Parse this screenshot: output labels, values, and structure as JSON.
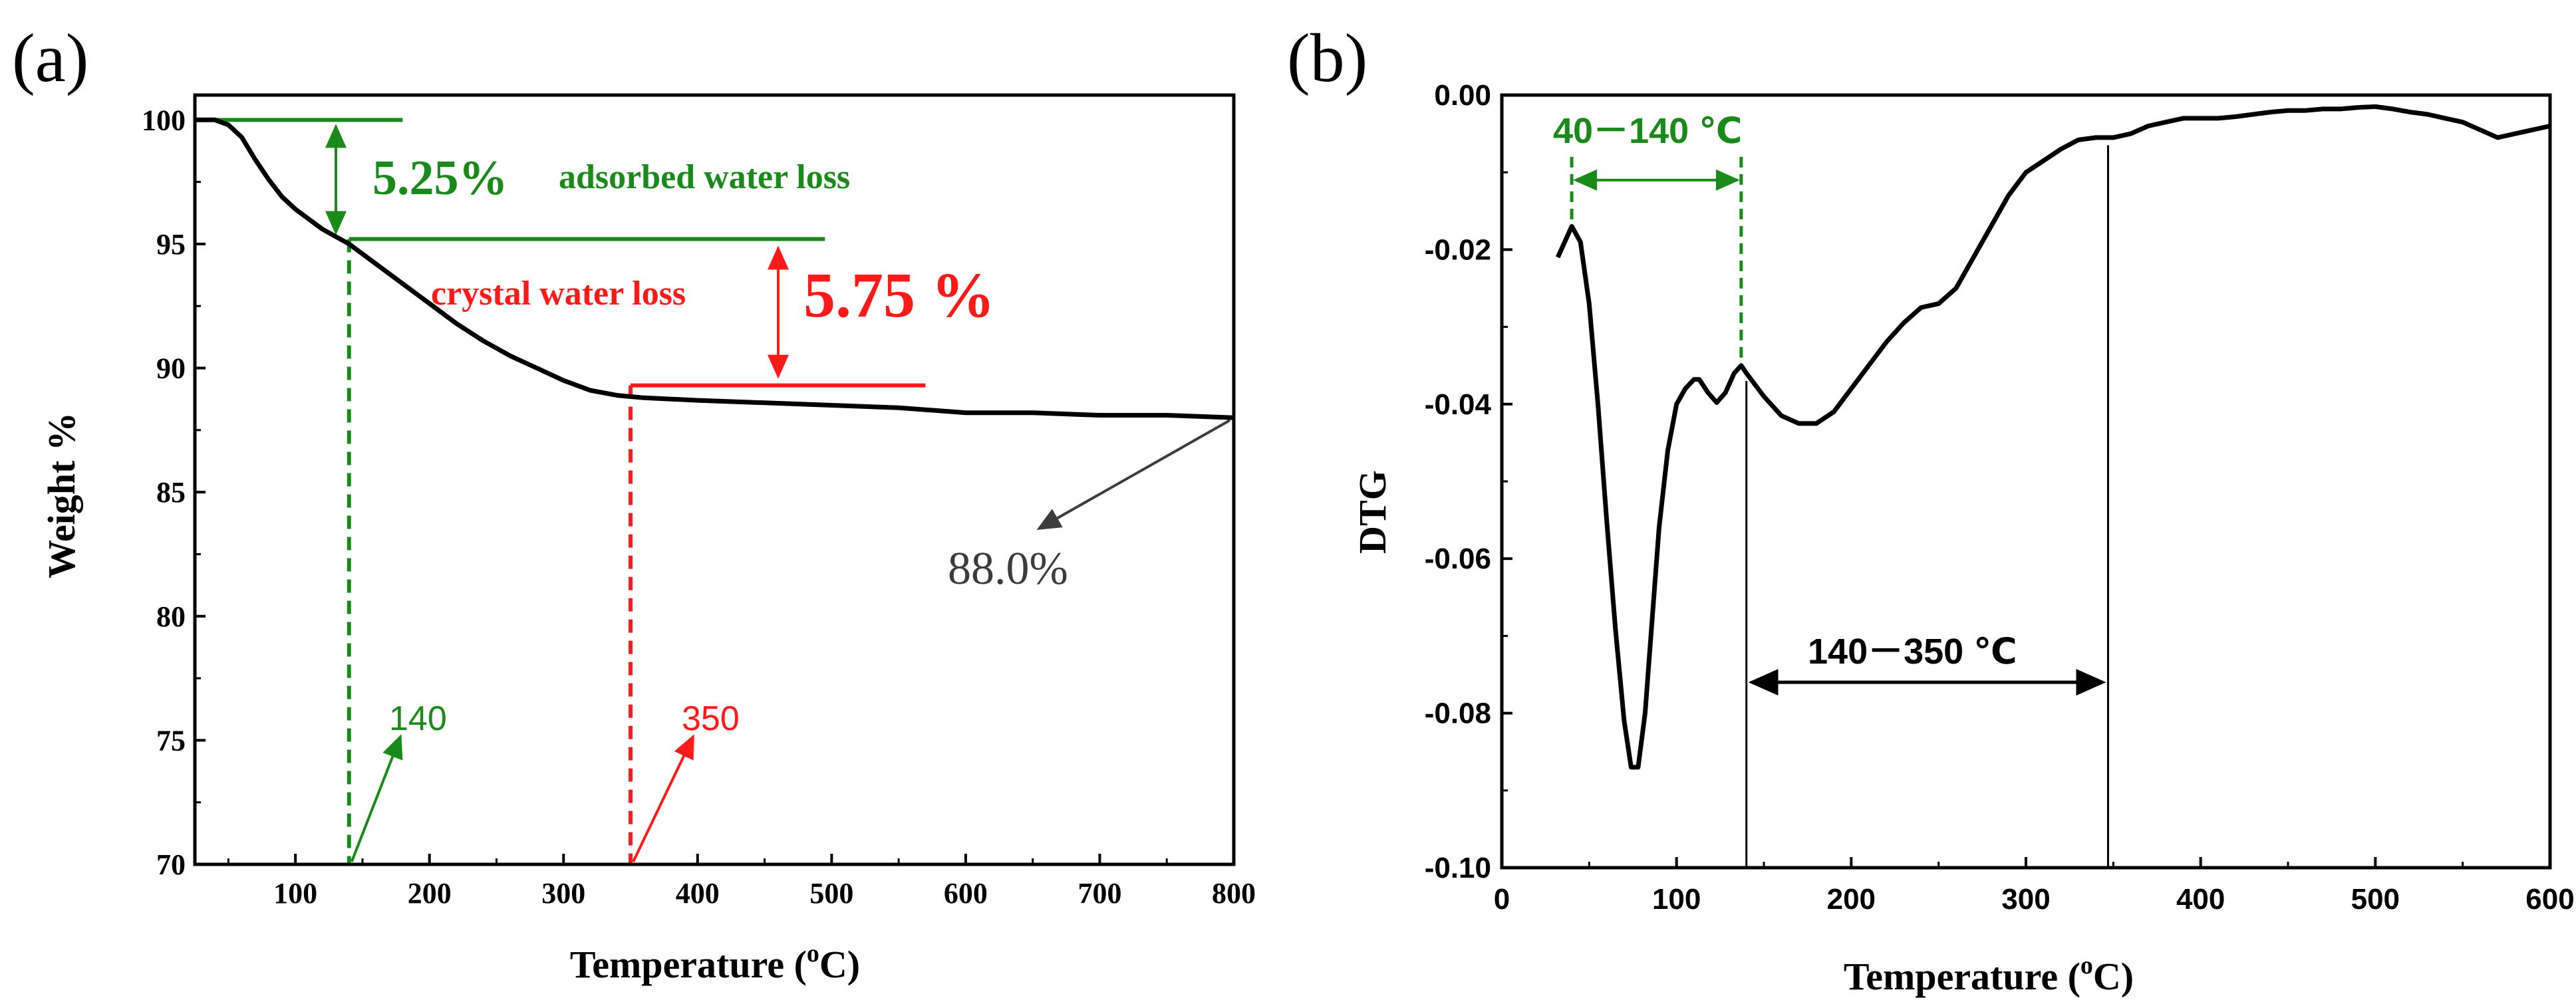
{
  "colors": {
    "axis": "#000000",
    "curve": "#000000",
    "green": "#1a8a1a",
    "red": "#ff1a1a",
    "gray": "#3c3c3c",
    "fit": "#b03030"
  },
  "chart_data": [
    {
      "panel_label": "(a)",
      "type": "line",
      "title": "",
      "xlabel_main": "Temperature (",
      "xlabel_sup": "o",
      "xlabel_end": "C)",
      "ylabel": "Weight %",
      "xlim": [
        25,
        800
      ],
      "ylim": [
        70,
        101
      ],
      "grid": false,
      "xticks": [
        100,
        200,
        300,
        400,
        500,
        600,
        700,
        800
      ],
      "yticks": [
        70,
        75,
        80,
        85,
        90,
        95,
        100
      ],
      "series": [
        {
          "name": "TG curve",
          "x": [
            25,
            40,
            50,
            60,
            70,
            80,
            90,
            100,
            110,
            120,
            130,
            140,
            160,
            180,
            200,
            220,
            240,
            260,
            280,
            300,
            320,
            340,
            360,
            400,
            450,
            500,
            550,
            600,
            650,
            700,
            750,
            800
          ],
          "y": [
            100,
            100,
            99.8,
            99.3,
            98.4,
            97.6,
            96.9,
            96.4,
            96.0,
            95.6,
            95.3,
            95.0,
            94.2,
            93.4,
            92.6,
            91.8,
            91.1,
            90.5,
            90.0,
            89.5,
            89.1,
            88.9,
            88.8,
            88.7,
            88.6,
            88.5,
            88.4,
            88.2,
            88.2,
            88.1,
            88.1,
            88.0
          ]
        }
      ],
      "annotations": {
        "step1_value": "5.25%",
        "step1_label": "adsorbed water loss",
        "step2_value": "5.75 %",
        "step2_label": "crystal water loss",
        "residue": "88.0%",
        "t1": "140",
        "t2": "350"
      },
      "reference_lines": {
        "upper_level_y": 100,
        "upper_level_x": [
          25,
          180
        ],
        "mid_level_y": 95.2,
        "mid_level_x": [
          140,
          495
        ],
        "low_level_y": 89.3,
        "low_level_x": [
          350,
          570
        ],
        "t1_x": 140,
        "t2_x": 350
      }
    },
    {
      "panel_label": "(b)",
      "type": "line",
      "title": "",
      "xlabel_main": "Temperature (",
      "xlabel_sup": "o",
      "xlabel_end": "C)",
      "ylabel": "DTG",
      "xlim": [
        0,
        600
      ],
      "ylim": [
        -0.1,
        0.0
      ],
      "grid": false,
      "xticks": [
        0,
        100,
        200,
        300,
        400,
        500,
        600
      ],
      "ytick_values": [
        0.0,
        -0.02,
        -0.04,
        -0.06,
        -0.08,
        -0.1
      ],
      "ytick_labels": [
        "0.00",
        "-0.02",
        "-0.04",
        "-0.06",
        "-0.08",
        "-0.10"
      ],
      "series": [
        {
          "name": "DTG curve",
          "x": [
            32,
            36,
            40,
            45,
            50,
            55,
            60,
            65,
            70,
            74,
            78,
            82,
            86,
            90,
            95,
            100,
            105,
            110,
            113,
            118,
            123,
            128,
            133,
            137,
            140,
            150,
            160,
            170,
            180,
            190,
            200,
            210,
            220,
            230,
            240,
            250,
            260,
            270,
            280,
            290,
            300,
            310,
            320,
            330,
            340,
            350,
            360,
            370,
            380,
            390,
            400,
            410,
            420,
            430,
            440,
            450,
            460,
            470,
            480,
            490,
            500,
            510,
            520,
            530,
            540,
            550,
            560,
            570,
            580,
            590,
            600
          ],
          "y": [
            -0.021,
            -0.019,
            -0.017,
            -0.019,
            -0.027,
            -0.04,
            -0.055,
            -0.069,
            -0.081,
            -0.087,
            -0.087,
            -0.08,
            -0.068,
            -0.056,
            -0.046,
            -0.04,
            -0.038,
            -0.0368,
            -0.0368,
            -0.0385,
            -0.0398,
            -0.0385,
            -0.036,
            -0.035,
            -0.036,
            -0.039,
            -0.0415,
            -0.0425,
            -0.0425,
            -0.041,
            -0.038,
            -0.035,
            -0.032,
            -0.0295,
            -0.0275,
            -0.027,
            -0.025,
            -0.021,
            -0.017,
            -0.013,
            -0.01,
            -0.0085,
            -0.007,
            -0.0058,
            -0.0055,
            -0.0055,
            -0.005,
            -0.004,
            -0.0035,
            -0.003,
            -0.003,
            -0.003,
            -0.0028,
            -0.0025,
            -0.0022,
            -0.002,
            -0.002,
            -0.0018,
            -0.0018,
            -0.0016,
            -0.0015,
            -0.0018,
            -0.0022,
            -0.0025,
            -0.003,
            -0.0035,
            -0.0045,
            -0.0055,
            -0.005,
            -0.0045,
            -0.004
          ]
        }
      ],
      "annotations": {
        "range1": "40－140 ℃",
        "range2": "140－350 ℃"
      },
      "reference_lines": {
        "range1_x": [
          40,
          137
        ],
        "range1_arrow_y": -0.011,
        "vline1_x": 140,
        "vline2_x": 347,
        "range2_arrow_y": -0.076
      }
    }
  ]
}
